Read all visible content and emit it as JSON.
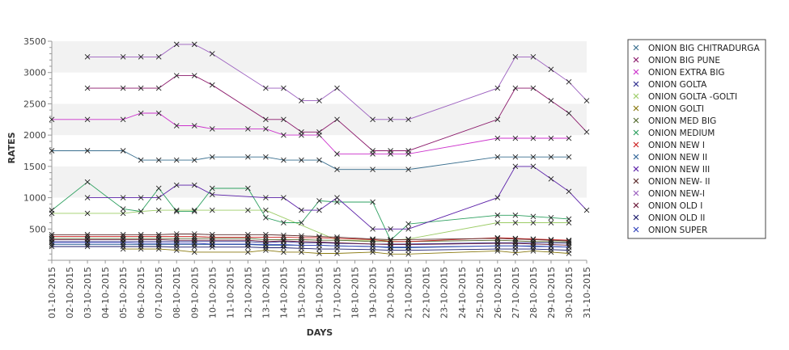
{
  "chart_data": {
    "type": "line",
    "title": "",
    "xlabel": "DAYS",
    "ylabel": "RATES",
    "ylim": [
      0,
      3500
    ],
    "yticks": [
      500,
      1000,
      1500,
      2000,
      2500,
      3000,
      3500
    ],
    "grid": "alternating horizontal bands",
    "legend_position": "right",
    "x": [
      "01-10-2015",
      "02-10-2015",
      "03-10-2015",
      "04-10-2015",
      "05-10-2015",
      "06-10-2015",
      "07-10-2015",
      "08-10-2015",
      "09-10-2015",
      "10-10-2015",
      "11-10-2015",
      "12-10-2015",
      "13-10-2015",
      "14-10-2015",
      "15-10-2015",
      "16-10-2015",
      "17-10-2015",
      "18-10-2015",
      "19-10-2015",
      "20-10-2015",
      "21-10-2015",
      "22-10-2015",
      "23-10-2015",
      "24-10-2015",
      "25-10-2015",
      "26-10-2015",
      "27-10-2015",
      "28-10-2015",
      "29-10-2015",
      "30-10-2015",
      "31-10-2015"
    ],
    "series": [
      {
        "name": "ONION BIG CHITRADURGA",
        "color": "#3a6f8f",
        "values": [
          1750,
          null,
          1750,
          null,
          1750,
          1600,
          1600,
          1600,
          1600,
          1650,
          null,
          1650,
          1650,
          1600,
          1600,
          1600,
          1450,
          null,
          1450,
          null,
          1450,
          null,
          null,
          null,
          null,
          1650,
          1650,
          1650,
          1650,
          1650,
          null
        ]
      },
      {
        "name": "ONION BIG PUNE",
        "color": "#8b1a6b",
        "values": [
          null,
          null,
          2750,
          null,
          2750,
          2750,
          2750,
          2950,
          2950,
          2800,
          null,
          null,
          2250,
          2250,
          2050,
          2050,
          2250,
          null,
          1750,
          1750,
          1750,
          null,
          null,
          null,
          null,
          2250,
          2750,
          2750,
          2550,
          2350,
          2050
        ]
      },
      {
        "name": "ONION EXTRA BIG",
        "color": "#cc33cc",
        "values": [
          2250,
          null,
          2250,
          null,
          2250,
          2350,
          2350,
          2150,
          2150,
          2100,
          null,
          2100,
          2100,
          2000,
          2000,
          2000,
          1700,
          null,
          1700,
          1700,
          1700,
          null,
          null,
          null,
          null,
          1950,
          1950,
          1950,
          1950,
          1950,
          null
        ]
      },
      {
        "name": "ONION GOLTA",
        "color": "#2e2e8f",
        "values": [
          300,
          null,
          300,
          null,
          300,
          300,
          300,
          300,
          300,
          300,
          null,
          300,
          280,
          300,
          280,
          280,
          270,
          null,
          260,
          260,
          260,
          null,
          null,
          null,
          null,
          280,
          280,
          280,
          280,
          270,
          null
        ]
      },
      {
        "name": "ONION GOLTA -GOLTI",
        "color": "#9ccc66",
        "values": [
          750,
          null,
          750,
          null,
          750,
          780,
          800,
          800,
          800,
          800,
          null,
          800,
          800,
          null,
          null,
          null,
          320,
          null,
          320,
          320,
          340,
          null,
          null,
          null,
          null,
          600,
          600,
          600,
          600,
          600,
          null
        ]
      },
      {
        "name": "ONION GOLTI",
        "color": "#8a7a10",
        "values": [
          null,
          null,
          null,
          null,
          180,
          180,
          180,
          160,
          130,
          null,
          null,
          130,
          160,
          130,
          130,
          110,
          110,
          null,
          130,
          100,
          100,
          null,
          null,
          null,
          null,
          150,
          120,
          150,
          130,
          110,
          null
        ]
      },
      {
        "name": "ONION MED BIG",
        "color": "#556b2f",
        "values": [
          350,
          null,
          350,
          null,
          350,
          350,
          350,
          350,
          350,
          350,
          null,
          350,
          330,
          330,
          330,
          320,
          320,
          null,
          300,
          300,
          300,
          null,
          null,
          null,
          null,
          320,
          310,
          300,
          300,
          290,
          null
        ]
      },
      {
        "name": "ONION MEDIUM",
        "color": "#2ea060",
        "values": [
          800,
          null,
          1250,
          null,
          820,
          780,
          1150,
          780,
          780,
          1150,
          null,
          1150,
          680,
          600,
          600,
          950,
          930,
          null,
          930,
          320,
          580,
          null,
          null,
          null,
          null,
          720,
          720,
          700,
          680,
          660,
          null
        ]
      },
      {
        "name": "ONION NEW I",
        "color": "#cc2222",
        "values": [
          380,
          null,
          380,
          null,
          380,
          380,
          380,
          380,
          380,
          370,
          null,
          370,
          370,
          370,
          360,
          360,
          350,
          null,
          330,
          300,
          300,
          null,
          null,
          null,
          null,
          360,
          350,
          340,
          330,
          320,
          null
        ]
      },
      {
        "name": "ONION NEW II",
        "color": "#336699",
        "values": [
          250,
          null,
          250,
          null,
          250,
          250,
          250,
          250,
          250,
          250,
          null,
          250,
          240,
          240,
          240,
          240,
          230,
          null,
          220,
          200,
          200,
          null,
          null,
          null,
          null,
          230,
          230,
          230,
          220,
          210,
          null
        ]
      },
      {
        "name": "ONION NEW III",
        "color": "#5a1fa8",
        "values": [
          null,
          null,
          1000,
          null,
          1000,
          1000,
          1000,
          1200,
          1200,
          1050,
          null,
          null,
          1000,
          1000,
          800,
          800,
          1000,
          null,
          500,
          500,
          500,
          null,
          null,
          null,
          null,
          1000,
          1500,
          1500,
          1300,
          1100,
          800
        ]
      },
      {
        "name": "ONION NEW- II",
        "color": "#5a2a2a",
        "values": [
          410,
          null,
          410,
          null,
          410,
          410,
          410,
          420,
          420,
          410,
          null,
          410,
          410,
          400,
          390,
          380,
          370,
          null,
          340,
          330,
          330,
          null,
          null,
          null,
          null,
          350,
          340,
          330,
          320,
          310,
          null
        ]
      },
      {
        "name": "ONION NEW-I",
        "color": "#9b5fbf",
        "values": [
          null,
          null,
          3250,
          null,
          3250,
          3250,
          3250,
          3450,
          3450,
          3300,
          null,
          null,
          2750,
          2750,
          2550,
          2550,
          2750,
          null,
          2250,
          2250,
          2250,
          null,
          null,
          null,
          null,
          2750,
          3250,
          3250,
          3050,
          2850,
          2550
        ]
      },
      {
        "name": "ONION OLD I",
        "color": "#6b1a3a",
        "values": [
          330,
          null,
          330,
          null,
          330,
          330,
          330,
          320,
          320,
          320,
          null,
          320,
          300,
          310,
          300,
          290,
          280,
          null,
          260,
          250,
          250,
          null,
          null,
          null,
          null,
          270,
          270,
          260,
          250,
          240,
          null
        ]
      },
      {
        "name": "ONION OLD II",
        "color": "#1a1a6b",
        "values": [
          220,
          null,
          220,
          null,
          220,
          220,
          220,
          210,
          210,
          210,
          null,
          210,
          200,
          200,
          190,
          180,
          180,
          null,
          170,
          160,
          160,
          null,
          null,
          null,
          null,
          180,
          180,
          180,
          170,
          160,
          null
        ]
      },
      {
        "name": "ONION SUPER",
        "color": "#3344bb",
        "values": [
          280,
          null,
          280,
          null,
          280,
          270,
          270,
          270,
          270,
          260,
          null,
          260,
          250,
          250,
          240,
          240,
          230,
          null,
          220,
          210,
          210,
          null,
          null,
          null,
          null,
          230,
          230,
          220,
          220,
          210,
          null
        ]
      }
    ]
  }
}
